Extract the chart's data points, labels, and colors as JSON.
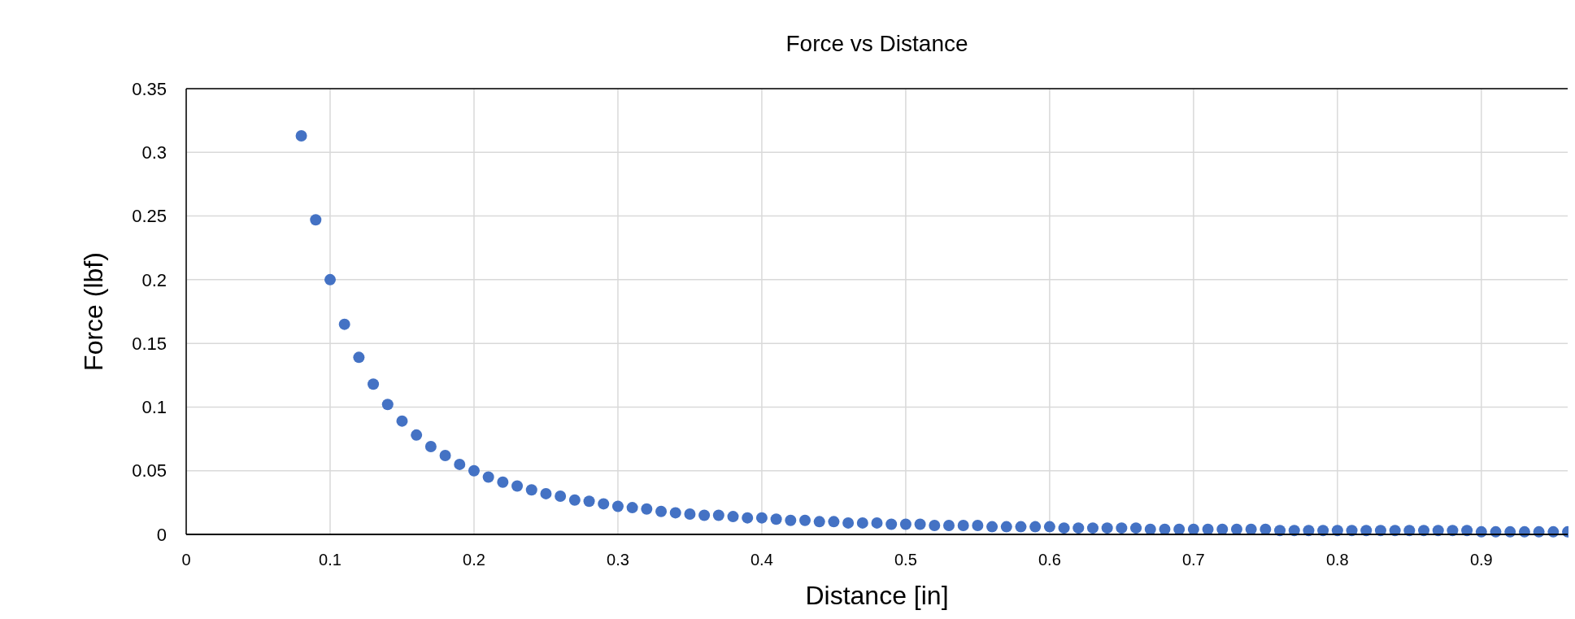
{
  "chart_data": {
    "type": "scatter",
    "title": "Force vs Distance",
    "xlabel": "Distance [in]",
    "ylabel": "Force (lbf)",
    "x": [
      0.08,
      0.09,
      0.1,
      0.11,
      0.12,
      0.13,
      0.14,
      0.15,
      0.16,
      0.17,
      0.18,
      0.19,
      0.2,
      0.21,
      0.22,
      0.23,
      0.24,
      0.25,
      0.26,
      0.27,
      0.28,
      0.29,
      0.3,
      0.31,
      0.32,
      0.33,
      0.34,
      0.35,
      0.36,
      0.37,
      0.38,
      0.39,
      0.4,
      0.41,
      0.42,
      0.43,
      0.44,
      0.45,
      0.46,
      0.47,
      0.48,
      0.49,
      0.5,
      0.51,
      0.52,
      0.53,
      0.54,
      0.55,
      0.56,
      0.57,
      0.58,
      0.59,
      0.6,
      0.61,
      0.62,
      0.63,
      0.64,
      0.65,
      0.66,
      0.67,
      0.68,
      0.69,
      0.7,
      0.71,
      0.72,
      0.73,
      0.74,
      0.75,
      0.76,
      0.77,
      0.78,
      0.79,
      0.8,
      0.81,
      0.82,
      0.83,
      0.84,
      0.85,
      0.86,
      0.87,
      0.88,
      0.89,
      0.9,
      0.91,
      0.92,
      0.93,
      0.94,
      0.95,
      0.96
    ],
    "series": [
      {
        "color": "#4472c4",
        "values": [
          0.313,
          0.247,
          0.2,
          0.165,
          0.139,
          0.118,
          0.102,
          0.089,
          0.078,
          0.069,
          0.062,
          0.055,
          0.05,
          0.045,
          0.041,
          0.038,
          0.035,
          0.032,
          0.03,
          0.027,
          0.026,
          0.024,
          0.022,
          0.021,
          0.02,
          0.018,
          0.017,
          0.016,
          0.015,
          0.015,
          0.014,
          0.013,
          0.013,
          0.012,
          0.011,
          0.011,
          0.01,
          0.01,
          0.009,
          0.009,
          0.009,
          0.008,
          0.008,
          0.008,
          0.007,
          0.007,
          0.007,
          0.007,
          0.006,
          0.006,
          0.006,
          0.006,
          0.006,
          0.005,
          0.005,
          0.005,
          0.005,
          0.005,
          0.005,
          0.004,
          0.004,
          0.004,
          0.004,
          0.004,
          0.004,
          0.004,
          0.004,
          0.004,
          0.003,
          0.003,
          0.003,
          0.003,
          0.003,
          0.003,
          0.003,
          0.003,
          0.003,
          0.003,
          0.003,
          0.003,
          0.003,
          0.003,
          0.002,
          0.002,
          0.002,
          0.002,
          0.002,
          0.002,
          0.002
        ]
      }
    ],
    "xlim": [
      0,
      0.96
    ],
    "xticks": [
      0,
      0.1,
      0.2,
      0.3,
      0.4,
      0.5,
      0.6,
      0.7,
      0.8,
      0.9
    ],
    "ylim": [
      0,
      0.35
    ],
    "yticks": [
      0,
      0.05,
      0.1,
      0.15,
      0.2,
      0.25,
      0.3,
      0.35
    ],
    "grid": true,
    "marker": "circle"
  }
}
